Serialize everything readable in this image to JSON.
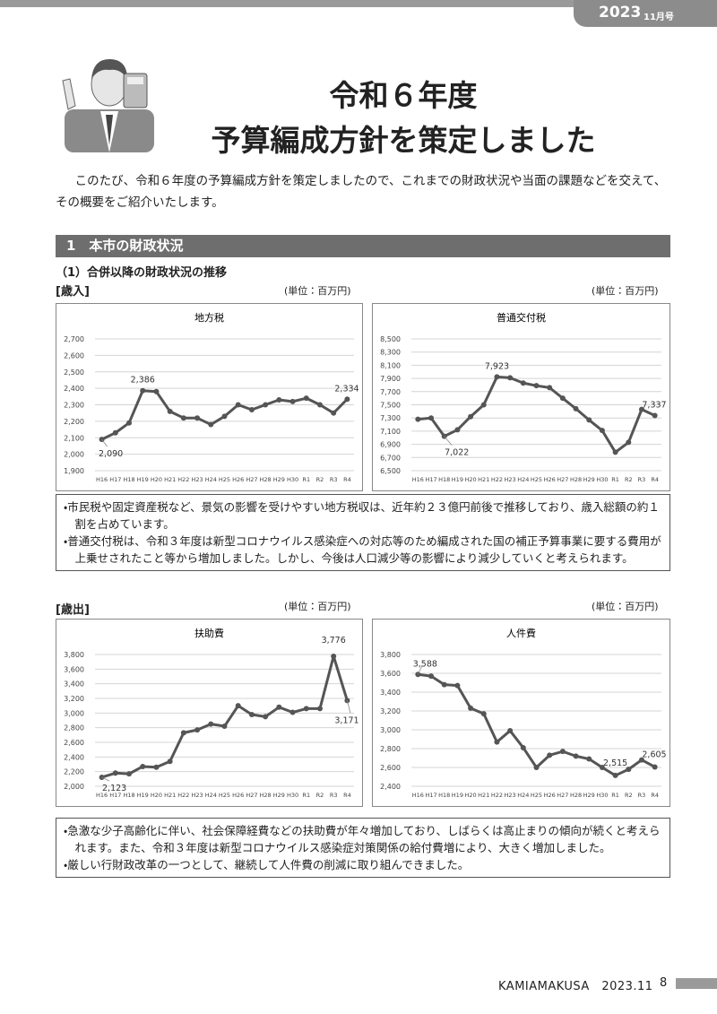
{
  "header": {
    "year": "2023",
    "issue": "11月号"
  },
  "title": {
    "line1": "令和６年度",
    "line2": "予算編成方針を策定しました"
  },
  "intro": "このたび、令和６年度の予算編成方針を策定しましたので、これまでの財政状況や当面の課題などを交えて、その概要をご紹介いたします。",
  "section": "1　本市の財政状況",
  "subsection": "（1）合併以降の財政状況の推移",
  "labels": {
    "revenue": "[歳入]",
    "expenditure": "[歳出]"
  },
  "notes": [
    [
      "・市民税や固定資産税など、景気の影響を受けやすい地方税収は、近年約２３億円前後で推移しており、歳入総額の約１割を占めています。",
      "・普通交付税は、令和３年度は新型コロナウイルス感染症への対応等のため編成された国の補正予算事業に要する費用が上乗せされたこと等から増加しました。しかし、今後は人口減少等の影響により減少していくと考えられます。"
    ],
    [
      "・急激な少子高齢化に伴い、社会保障経費などの扶助費が年々増加しており、しばらくは高止まりの傾向が続くと考えられます。また、令和３年度は新型コロナウイルス感染症対策関係の給付費増により、大きく増加しました。",
      "・厳しい行財政改革の一つとして、継続して人件費の削減に取り組んできました。"
    ]
  ],
  "footer": {
    "publication": "KAMIAMAKUSA　2023.11",
    "page": "8"
  },
  "chart_data": [
    {
      "type": "line",
      "title": "地方税",
      "unit": "(単位：百万円)",
      "color": "#555555",
      "grid": true,
      "categories": [
        "H16",
        "H17",
        "H18",
        "H19",
        "H20",
        "H21",
        "H22",
        "H23",
        "H24",
        "H25",
        "H26",
        "H27",
        "H28",
        "H29",
        "H30",
        "R1",
        "R2",
        "R3",
        "R4"
      ],
      "values": [
        2090,
        2130,
        2190,
        2386,
        2380,
        2260,
        2220,
        2220,
        2180,
        2230,
        2300,
        2270,
        2300,
        2330,
        2320,
        2340,
        2300,
        2250,
        2334
      ],
      "value_labels": [
        "2,090",
        null,
        null,
        "2,386",
        null,
        null,
        null,
        null,
        null,
        null,
        null,
        null,
        null,
        null,
        null,
        null,
        null,
        null,
        "2,334"
      ],
      "ylim": [
        1900,
        2700
      ],
      "yticks": [
        {
          "value": 1900,
          "label": "1,900"
        },
        {
          "value": 2000,
          "label": "2,000"
        },
        {
          "value": 2100,
          "label": "2,100"
        },
        {
          "value": 2200,
          "label": "2,200"
        },
        {
          "value": 2300,
          "label": "2,300"
        },
        {
          "value": 2400,
          "label": "2,400"
        },
        {
          "value": 2500,
          "label": "2,500"
        },
        {
          "value": 2600,
          "label": "2,600"
        },
        {
          "value": 2700,
          "label": "2,700"
        }
      ]
    },
    {
      "type": "line",
      "title": "普通交付税",
      "unit": "(単位：百万円)",
      "color": "#555555",
      "grid": true,
      "categories": [
        "H16",
        "H17",
        "H18",
        "H19",
        "H20",
        "H21",
        "H22",
        "H23",
        "H24",
        "H25",
        "H26",
        "H27",
        "H28",
        "H29",
        "H30",
        "R1",
        "R2",
        "R3",
        "R4"
      ],
      "values": [
        7280,
        7300,
        7022,
        7120,
        7320,
        7500,
        7923,
        7910,
        7830,
        7790,
        7760,
        7600,
        7440,
        7270,
        7110,
        6780,
        6930,
        7430,
        7337
      ],
      "value_labels": [
        null,
        null,
        "7,022",
        null,
        null,
        null,
        "7,923",
        null,
        null,
        null,
        null,
        null,
        null,
        null,
        null,
        null,
        null,
        null,
        "7,337"
      ],
      "ylim": [
        6500,
        8500
      ],
      "yticks": [
        {
          "value": 6500,
          "label": "6,500"
        },
        {
          "value": 6700,
          "label": "6,700"
        },
        {
          "value": 6900,
          "label": "6,900"
        },
        {
          "value": 7100,
          "label": "7,100"
        },
        {
          "value": 7300,
          "label": "7,300"
        },
        {
          "value": 7500,
          "label": "7,500"
        },
        {
          "value": 7700,
          "label": "7,700"
        },
        {
          "value": 7900,
          "label": "7,900"
        },
        {
          "value": 8100,
          "label": "8,100"
        },
        {
          "value": 8300,
          "label": "8,300"
        },
        {
          "value": 8500,
          "label": "8,500"
        }
      ]
    },
    {
      "type": "line",
      "title": "扶助費",
      "unit": "(単位：百万円)",
      "color": "#555555",
      "grid": true,
      "categories": [
        "H16",
        "H17",
        "H18",
        "H19",
        "H20",
        "H21",
        "H22",
        "H23",
        "H24",
        "H25",
        "H26",
        "H27",
        "H28",
        "H29",
        "H30",
        "R1",
        "R2",
        "R3",
        "R4"
      ],
      "values": [
        2123,
        2180,
        2170,
        2270,
        2260,
        2340,
        2730,
        2770,
        2850,
        2820,
        3100,
        2980,
        2950,
        3080,
        3010,
        3060,
        3060,
        3776,
        3171
      ],
      "value_labels": [
        "2,123",
        null,
        null,
        null,
        null,
        null,
        null,
        null,
        null,
        null,
        null,
        null,
        null,
        null,
        null,
        null,
        null,
        "3,776",
        "3,171"
      ],
      "ylim": [
        2000,
        3800
      ],
      "yticks": [
        {
          "value": 2000,
          "label": "2,000"
        },
        {
          "value": 2200,
          "label": "2,200"
        },
        {
          "value": 2400,
          "label": "2,400"
        },
        {
          "value": 2600,
          "label": "2,600"
        },
        {
          "value": 2800,
          "label": "2,800"
        },
        {
          "value": 3000,
          "label": "3,000"
        },
        {
          "value": 3200,
          "label": "3,200"
        },
        {
          "value": 3400,
          "label": "3,400"
        },
        {
          "value": 3600,
          "label": "3,600"
        },
        {
          "value": 3800,
          "label": "3,800"
        }
      ]
    },
    {
      "type": "line",
      "title": "人件費",
      "unit": "(単位：百万円)",
      "color": "#555555",
      "grid": true,
      "categories": [
        "H16",
        "H17",
        "H18",
        "H19",
        "H20",
        "H21",
        "H22",
        "H23",
        "H24",
        "H25",
        "H26",
        "H27",
        "H28",
        "H29",
        "H30",
        "R1",
        "R2",
        "R3",
        "R4"
      ],
      "values": [
        3588,
        3570,
        3480,
        3470,
        3230,
        3170,
        2870,
        2990,
        2810,
        2600,
        2730,
        2770,
        2720,
        2690,
        2600,
        2515,
        2580,
        2680,
        2605
      ],
      "value_labels": [
        "3,588",
        null,
        null,
        null,
        null,
        null,
        null,
        null,
        null,
        null,
        null,
        null,
        null,
        null,
        null,
        "2,515",
        null,
        null,
        "2,605"
      ],
      "ylim": [
        2400,
        3800
      ],
      "yticks": [
        {
          "value": 2400,
          "label": "2,400"
        },
        {
          "value": 2600,
          "label": "2,600"
        },
        {
          "value": 2800,
          "label": "2,800"
        },
        {
          "value": 3000,
          "label": "3,000"
        },
        {
          "value": 3200,
          "label": "3,200"
        },
        {
          "value": 3400,
          "label": "3,400"
        },
        {
          "value": 3600,
          "label": "3,600"
        },
        {
          "value": 3800,
          "label": "3,800"
        }
      ]
    }
  ]
}
